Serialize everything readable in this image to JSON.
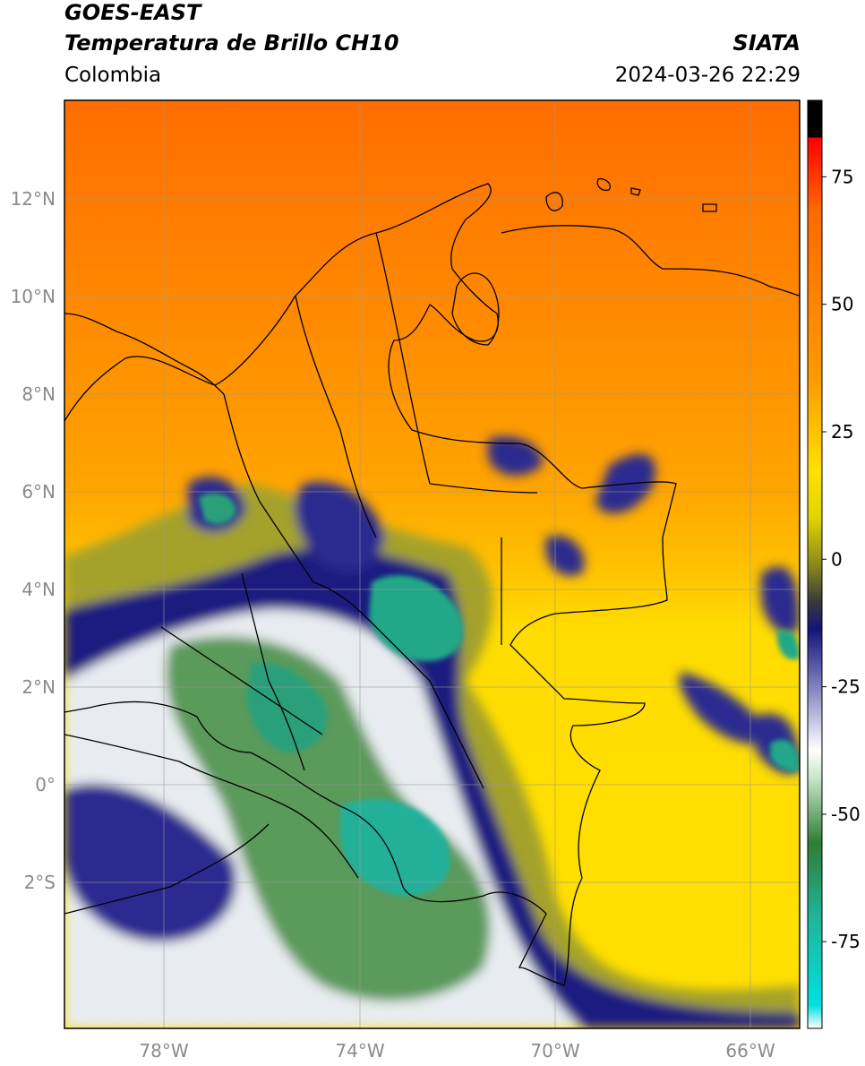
{
  "header": {
    "satellite": "GOES-EAST",
    "product": "Temperatura de Brillo CH10",
    "agency": "SIATA",
    "region": "Colombia",
    "datetime": "2024-03-26 22:29"
  },
  "map": {
    "lat_ticks": [
      "12°N",
      "10°N",
      "8°N",
      "6°N",
      "4°N",
      "2°N",
      "0°",
      "2°S"
    ],
    "lon_ticks": [
      "78°W",
      "74°W",
      "70°W",
      "66°W"
    ],
    "colors": {
      "hot": "#ff6a00",
      "warm": "#ff9a00",
      "mid": "#ffd400",
      "olive": "#8a8a1a",
      "navy": "#14147a",
      "white": "#ffffff",
      "green": "#2e8b3a",
      "teal": "#1fb59a"
    }
  },
  "colorbar": {
    "labels": [
      "75",
      "50",
      "25",
      "0",
      "-25",
      "-50",
      "-75"
    ],
    "values": [
      75,
      50,
      25,
      0,
      -25,
      -50,
      -75
    ],
    "range": [
      -92,
      90
    ]
  }
}
